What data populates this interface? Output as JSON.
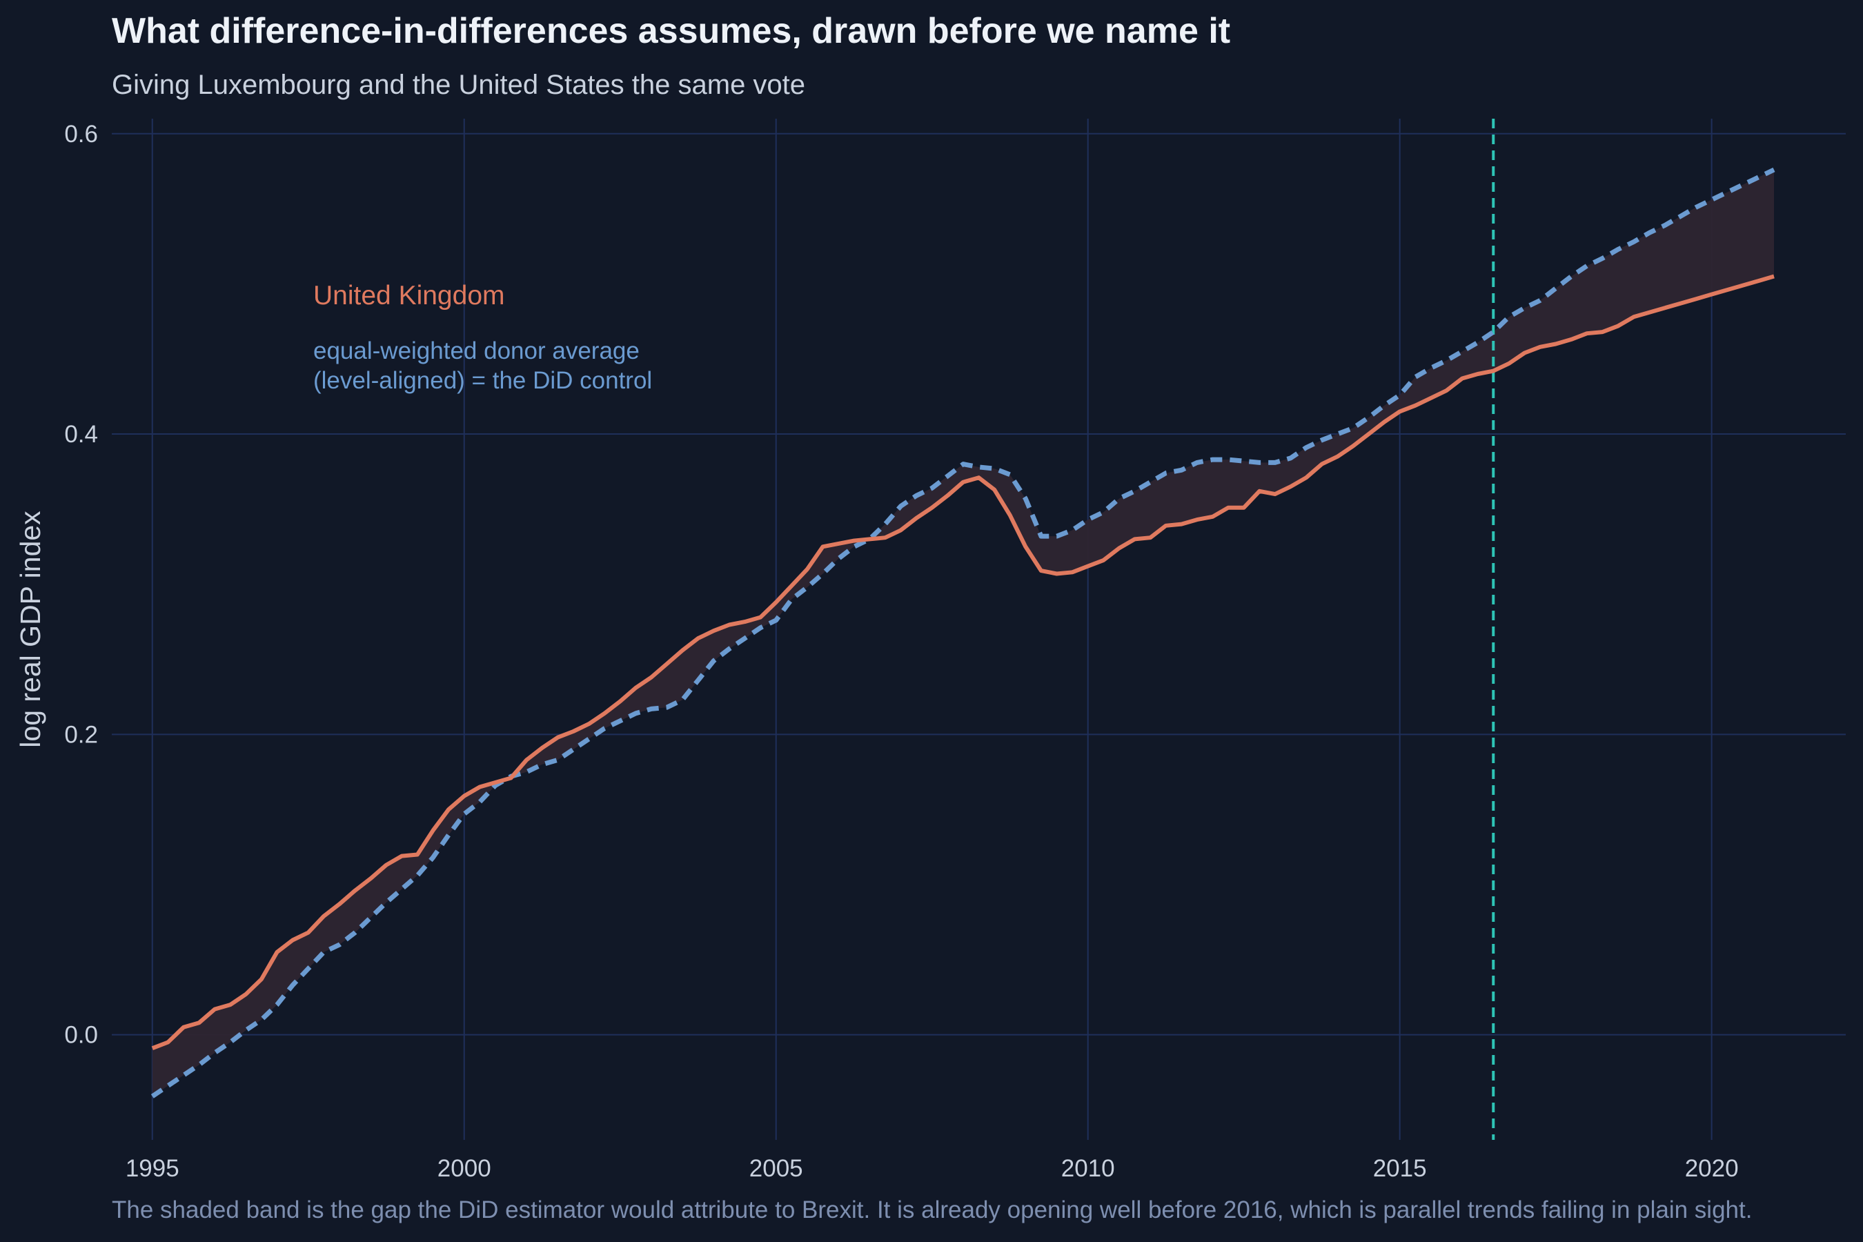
{
  "title": "What difference-in-differences assumes, drawn before we name it",
  "subtitle": "Giving Luxembourg and the United States the same vote",
  "caption": "The shaded band is the gap the DiD estimator would attribute to Brexit. It is already opening well before 2016, which is parallel trends failing in plain sight.",
  "colors": {
    "background": "#111827",
    "grid": "#1F2F5A",
    "uk": "#E07A5F",
    "donor": "#6B9BD1",
    "band": "#2E2530",
    "vline": "#2EC4B6"
  },
  "chart_data": {
    "type": "line",
    "xlabel": "",
    "ylabel": "log real GDP index",
    "xlim": [
      1994.35,
      2022.15
    ],
    "ylim": [
      -0.07,
      0.61
    ],
    "xticks": [
      1995,
      2000,
      2005,
      2010,
      2015,
      2020
    ],
    "yticks": [
      0.0,
      0.2,
      0.4,
      0.6
    ],
    "ytick_labels": [
      "0.0",
      "0.2",
      "0.4",
      "0.6"
    ],
    "grid": true,
    "vline": {
      "x": 2016.5,
      "style": "dashed"
    },
    "annotations": {
      "uk_label": "United Kingdom",
      "donor_label_line1": "equal-weighted donor average",
      "donor_label_line2": "(level-aligned) = the DiD control"
    },
    "series": [
      {
        "name": "United Kingdom",
        "style": "solid",
        "points": [
          [
            1995.0,
            -0.009
          ],
          [
            1995.25,
            -0.005
          ],
          [
            1995.5,
            0.005
          ],
          [
            1995.75,
            0.008
          ],
          [
            1996.0,
            0.017
          ],
          [
            1996.25,
            0.02
          ],
          [
            1996.5,
            0.027
          ],
          [
            1996.75,
            0.037
          ],
          [
            1997.0,
            0.055
          ],
          [
            1997.25,
            0.063
          ],
          [
            1997.5,
            0.068
          ],
          [
            1997.75,
            0.079
          ],
          [
            1998.0,
            0.087
          ],
          [
            1998.25,
            0.096
          ],
          [
            1998.5,
            0.104
          ],
          [
            1998.75,
            0.113
          ],
          [
            1999.0,
            0.119
          ],
          [
            1999.25,
            0.12
          ],
          [
            1999.5,
            0.136
          ],
          [
            1999.75,
            0.15
          ],
          [
            2000.0,
            0.159
          ],
          [
            2000.25,
            0.165
          ],
          [
            2000.5,
            0.168
          ],
          [
            2000.75,
            0.171
          ],
          [
            2001.0,
            0.183
          ],
          [
            2001.25,
            0.191
          ],
          [
            2001.5,
            0.198
          ],
          [
            2001.75,
            0.202
          ],
          [
            2002.0,
            0.207
          ],
          [
            2002.25,
            0.214
          ],
          [
            2002.5,
            0.222
          ],
          [
            2002.75,
            0.231
          ],
          [
            2003.0,
            0.238
          ],
          [
            2003.25,
            0.247
          ],
          [
            2003.5,
            0.256
          ],
          [
            2003.75,
            0.264
          ],
          [
            2004.0,
            0.269
          ],
          [
            2004.25,
            0.273
          ],
          [
            2004.5,
            0.275
          ],
          [
            2004.75,
            0.278
          ],
          [
            2005.0,
            0.288
          ],
          [
            2005.25,
            0.299
          ],
          [
            2005.5,
            0.31
          ],
          [
            2005.75,
            0.325
          ],
          [
            2006.0,
            0.327
          ],
          [
            2006.25,
            0.329
          ],
          [
            2006.5,
            0.33
          ],
          [
            2006.75,
            0.331
          ],
          [
            2007.0,
            0.336
          ],
          [
            2007.25,
            0.344
          ],
          [
            2007.5,
            0.351
          ],
          [
            2007.75,
            0.359
          ],
          [
            2008.0,
            0.368
          ],
          [
            2008.25,
            0.371
          ],
          [
            2008.5,
            0.363
          ],
          [
            2008.75,
            0.346
          ],
          [
            2009.0,
            0.325
          ],
          [
            2009.25,
            0.309
          ],
          [
            2009.5,
            0.307
          ],
          [
            2009.75,
            0.308
          ],
          [
            2010.0,
            0.312
          ],
          [
            2010.25,
            0.316
          ],
          [
            2010.5,
            0.324
          ],
          [
            2010.75,
            0.33
          ],
          [
            2011.0,
            0.331
          ],
          [
            2011.25,
            0.339
          ],
          [
            2011.5,
            0.34
          ],
          [
            2011.75,
            0.343
          ],
          [
            2012.0,
            0.345
          ],
          [
            2012.25,
            0.351
          ],
          [
            2012.5,
            0.351
          ],
          [
            2012.75,
            0.362
          ],
          [
            2013.0,
            0.36
          ],
          [
            2013.25,
            0.365
          ],
          [
            2013.5,
            0.371
          ],
          [
            2013.75,
            0.38
          ],
          [
            2014.0,
            0.385
          ],
          [
            2014.25,
            0.392
          ],
          [
            2014.5,
            0.4
          ],
          [
            2014.75,
            0.408
          ],
          [
            2015.0,
            0.415
          ],
          [
            2015.25,
            0.419
          ],
          [
            2015.5,
            0.424
          ],
          [
            2015.75,
            0.429
          ],
          [
            2016.0,
            0.437
          ],
          [
            2016.25,
            0.44
          ],
          [
            2016.5,
            0.442
          ],
          [
            2016.75,
            0.447
          ],
          [
            2017.0,
            0.454
          ],
          [
            2017.25,
            0.458
          ],
          [
            2017.5,
            0.46
          ],
          [
            2017.75,
            0.463
          ],
          [
            2018.0,
            0.467
          ],
          [
            2018.25,
            0.468
          ],
          [
            2018.5,
            0.472
          ],
          [
            2018.75,
            0.478
          ],
          [
            2019.0,
            0.481
          ],
          [
            2019.25,
            0.484
          ],
          [
            2019.5,
            0.487
          ],
          [
            2019.75,
            0.49
          ],
          [
            2020.0,
            0.493
          ],
          [
            2020.25,
            0.496
          ],
          [
            2020.5,
            0.499
          ],
          [
            2020.75,
            0.502
          ],
          [
            2021.0,
            0.505
          ]
        ]
      },
      {
        "name": "equal-weighted donor average",
        "style": "dashed",
        "points": [
          [
            1995.0,
            -0.041
          ],
          [
            1995.25,
            -0.034
          ],
          [
            1995.5,
            -0.027
          ],
          [
            1995.75,
            -0.02
          ],
          [
            1996.0,
            -0.012
          ],
          [
            1996.25,
            -0.005
          ],
          [
            1996.5,
            0.003
          ],
          [
            1996.75,
            0.01
          ],
          [
            1997.0,
            0.02
          ],
          [
            1997.25,
            0.033
          ],
          [
            1997.5,
            0.044
          ],
          [
            1997.75,
            0.055
          ],
          [
            1998.0,
            0.06
          ],
          [
            1998.25,
            0.068
          ],
          [
            1998.5,
            0.078
          ],
          [
            1998.75,
            0.088
          ],
          [
            1999.0,
            0.097
          ],
          [
            1999.25,
            0.106
          ],
          [
            1999.5,
            0.118
          ],
          [
            1999.75,
            0.133
          ],
          [
            2000.0,
            0.147
          ],
          [
            2000.25,
            0.155
          ],
          [
            2000.5,
            0.166
          ],
          [
            2000.75,
            0.172
          ],
          [
            2001.0,
            0.175
          ],
          [
            2001.25,
            0.18
          ],
          [
            2001.5,
            0.183
          ],
          [
            2001.75,
            0.19
          ],
          [
            2002.0,
            0.197
          ],
          [
            2002.25,
            0.204
          ],
          [
            2002.5,
            0.209
          ],
          [
            2002.75,
            0.214
          ],
          [
            2003.0,
            0.217
          ],
          [
            2003.25,
            0.218
          ],
          [
            2003.5,
            0.223
          ],
          [
            2003.75,
            0.236
          ],
          [
            2004.0,
            0.249
          ],
          [
            2004.25,
            0.257
          ],
          [
            2004.5,
            0.264
          ],
          [
            2004.75,
            0.271
          ],
          [
            2005.0,
            0.276
          ],
          [
            2005.25,
            0.29
          ],
          [
            2005.5,
            0.298
          ],
          [
            2005.75,
            0.307
          ],
          [
            2006.0,
            0.317
          ],
          [
            2006.25,
            0.325
          ],
          [
            2006.5,
            0.33
          ],
          [
            2006.75,
            0.34
          ],
          [
            2007.0,
            0.352
          ],
          [
            2007.25,
            0.359
          ],
          [
            2007.5,
            0.364
          ],
          [
            2007.75,
            0.372
          ],
          [
            2008.0,
            0.38
          ],
          [
            2008.25,
            0.378
          ],
          [
            2008.5,
            0.377
          ],
          [
            2008.75,
            0.373
          ],
          [
            2009.0,
            0.357
          ],
          [
            2009.25,
            0.332
          ],
          [
            2009.5,
            0.332
          ],
          [
            2009.75,
            0.336
          ],
          [
            2010.0,
            0.343
          ],
          [
            2010.25,
            0.348
          ],
          [
            2010.5,
            0.357
          ],
          [
            2010.75,
            0.362
          ],
          [
            2011.0,
            0.368
          ],
          [
            2011.25,
            0.374
          ],
          [
            2011.5,
            0.376
          ],
          [
            2011.75,
            0.381
          ],
          [
            2012.0,
            0.383
          ],
          [
            2012.25,
            0.383
          ],
          [
            2012.5,
            0.382
          ],
          [
            2012.75,
            0.381
          ],
          [
            2013.0,
            0.381
          ],
          [
            2013.25,
            0.384
          ],
          [
            2013.5,
            0.391
          ],
          [
            2013.75,
            0.396
          ],
          [
            2014.0,
            0.4
          ],
          [
            2014.25,
            0.404
          ],
          [
            2014.5,
            0.411
          ],
          [
            2014.75,
            0.419
          ],
          [
            2015.0,
            0.426
          ],
          [
            2015.25,
            0.438
          ],
          [
            2015.5,
            0.444
          ],
          [
            2015.75,
            0.449
          ],
          [
            2016.0,
            0.455
          ],
          [
            2016.25,
            0.461
          ],
          [
            2016.5,
            0.468
          ],
          [
            2016.75,
            0.478
          ],
          [
            2017.0,
            0.484
          ],
          [
            2017.25,
            0.489
          ],
          [
            2017.5,
            0.497
          ],
          [
            2017.75,
            0.505
          ],
          [
            2018.0,
            0.512
          ],
          [
            2018.25,
            0.517
          ],
          [
            2018.5,
            0.523
          ],
          [
            2018.75,
            0.528
          ],
          [
            2019.0,
            0.534
          ],
          [
            2019.25,
            0.539
          ],
          [
            2019.5,
            0.545
          ],
          [
            2019.75,
            0.551
          ],
          [
            2020.0,
            0.556
          ],
          [
            2020.25,
            0.561
          ],
          [
            2020.5,
            0.566
          ],
          [
            2020.75,
            0.571
          ],
          [
            2021.0,
            0.576
          ]
        ]
      }
    ]
  }
}
